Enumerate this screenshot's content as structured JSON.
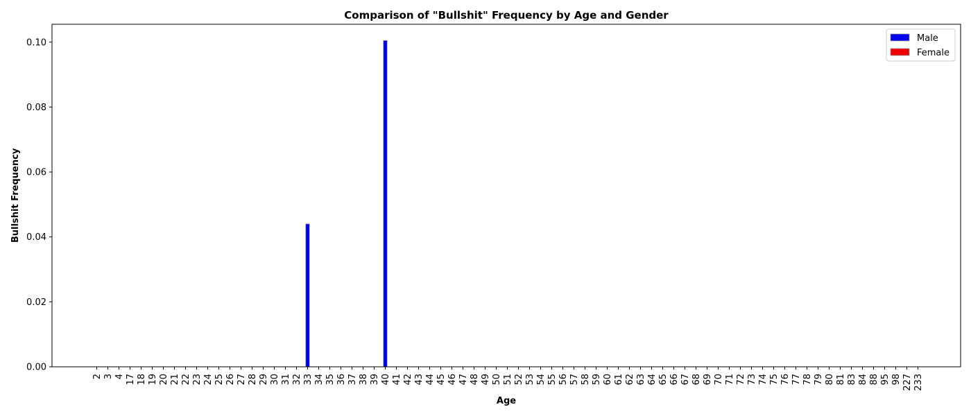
{
  "chart_data": {
    "type": "bar",
    "title": "Comparison of \"Bullshit\" Frequency by Age and Gender",
    "xlabel": "Age",
    "ylabel": "Bullshit Frequency",
    "categories": [
      "2",
      "3",
      "4",
      "17",
      "18",
      "19",
      "20",
      "21",
      "22",
      "23",
      "24",
      "25",
      "26",
      "27",
      "28",
      "29",
      "30",
      "31",
      "32",
      "33",
      "34",
      "35",
      "36",
      "37",
      "38",
      "39",
      "40",
      "41",
      "42",
      "43",
      "44",
      "45",
      "46",
      "47",
      "48",
      "49",
      "50",
      "51",
      "52",
      "53",
      "54",
      "55",
      "56",
      "57",
      "58",
      "59",
      "60",
      "61",
      "62",
      "63",
      "64",
      "65",
      "66",
      "67",
      "68",
      "69",
      "70",
      "71",
      "72",
      "73",
      "74",
      "75",
      "76",
      "77",
      "78",
      "79",
      "80",
      "81",
      "83",
      "84",
      "88",
      "95",
      "98",
      "227",
      "233"
    ],
    "series": [
      {
        "name": "Male",
        "color": "#0000ee",
        "values": [
          0,
          0,
          0,
          0,
          0,
          0,
          0,
          0,
          0,
          0,
          0,
          0,
          0,
          0,
          0,
          0,
          0,
          0,
          0,
          0.044,
          0,
          0,
          0,
          0,
          0,
          0,
          0.1005,
          0,
          0,
          0,
          0,
          0,
          0,
          0,
          0,
          0,
          0,
          0,
          0,
          0,
          0,
          0,
          0,
          0,
          0,
          0,
          0,
          0,
          0,
          0,
          0,
          0,
          0,
          0,
          0,
          0,
          0,
          0,
          0,
          0,
          0,
          0,
          0,
          0,
          0,
          0,
          0,
          0,
          0,
          0,
          0,
          0,
          0,
          0,
          0
        ]
      },
      {
        "name": "Female",
        "color": "#ee0000",
        "values": [
          0,
          0,
          0,
          0,
          0,
          0,
          0,
          0,
          0,
          0,
          0,
          0,
          0,
          0,
          0,
          0,
          0,
          0,
          0,
          0,
          0,
          0,
          0,
          0,
          0,
          0,
          0,
          0,
          0,
          0,
          0,
          0,
          0,
          0,
          0,
          0,
          0,
          0,
          0,
          0,
          0,
          0,
          0,
          0,
          0,
          0,
          0,
          0,
          0,
          0,
          0,
          0,
          0,
          0,
          0,
          0,
          0,
          0,
          0,
          0,
          0,
          0,
          0,
          0,
          0,
          0,
          0,
          0,
          0,
          0,
          0,
          0,
          0,
          0,
          0
        ]
      }
    ],
    "yticks": [
      "0.00",
      "0.02",
      "0.04",
      "0.06",
      "0.08",
      "0.10"
    ],
    "ylim": [
      0,
      0.1055
    ],
    "legend_position": "top-right",
    "grid": false
  }
}
